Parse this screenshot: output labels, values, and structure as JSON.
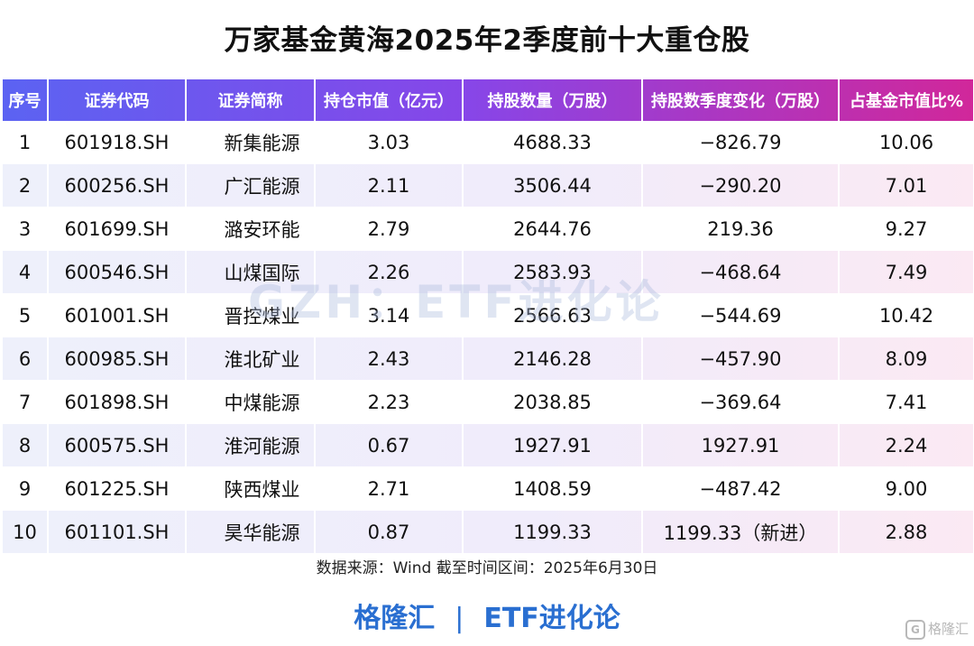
{
  "chart_data": {
    "type": "table",
    "title": "万家基金黄海2025年2季度前十大重仓股",
    "columns": [
      "序号",
      "证券代码",
      "证券简称",
      "持仓市值（亿元）",
      "持股数量（万股）",
      "持股数季度变化（万股）",
      "占基金市值比%"
    ],
    "rows": [
      {
        "rank": "1",
        "code": "601918.SH",
        "name": "新集能源",
        "value": "3.03",
        "shares": "4688.33",
        "change": "−826.79",
        "change_dir": "neg",
        "pct": "10.06"
      },
      {
        "rank": "2",
        "code": "600256.SH",
        "name": "广汇能源",
        "value": "2.11",
        "shares": "3506.44",
        "change": "−290.20",
        "change_dir": "neg",
        "pct": "7.01"
      },
      {
        "rank": "3",
        "code": "601699.SH",
        "name": "潞安环能",
        "value": "2.79",
        "shares": "2644.76",
        "change": "219.36",
        "change_dir": "pos",
        "pct": "9.27"
      },
      {
        "rank": "4",
        "code": "600546.SH",
        "name": "山煤国际",
        "value": "2.26",
        "shares": "2583.93",
        "change": "−468.64",
        "change_dir": "neg",
        "pct": "7.49"
      },
      {
        "rank": "5",
        "code": "601001.SH",
        "name": "晋控煤业",
        "value": "3.14",
        "shares": "2566.63",
        "change": "−544.69",
        "change_dir": "neg",
        "pct": "10.42"
      },
      {
        "rank": "6",
        "code": "600985.SH",
        "name": "淮北矿业",
        "value": "2.43",
        "shares": "2146.28",
        "change": "−457.90",
        "change_dir": "neg",
        "pct": "8.09"
      },
      {
        "rank": "7",
        "code": "601898.SH",
        "name": "中煤能源",
        "value": "2.23",
        "shares": "2038.85",
        "change": "−369.64",
        "change_dir": "neg",
        "pct": "7.41"
      },
      {
        "rank": "8",
        "code": "600575.SH",
        "name": "淮河能源",
        "value": "0.67",
        "shares": "1927.91",
        "change": "1927.91",
        "change_dir": "pos",
        "pct": "2.24"
      },
      {
        "rank": "9",
        "code": "601225.SH",
        "name": "陕西煤业",
        "value": "2.71",
        "shares": "1408.59",
        "change": "−487.42",
        "change_dir": "neg",
        "pct": "9.00"
      },
      {
        "rank": "10",
        "code": "601101.SH",
        "name": "昊华能源",
        "value": "0.87",
        "shares": "1199.33",
        "change": "1199.33（新进）",
        "change_dir": "pos",
        "pct": "2.88"
      }
    ]
  },
  "source": "数据来源：Wind 截至时间区间：2025年6月30日",
  "watermark": "GZH：ETF进化论",
  "footer": {
    "brand_left": "格隆汇",
    "divider": "|",
    "brand_right": "ETF进化论",
    "corner_logo_text": "格隆汇",
    "corner_logo_icon": "G"
  },
  "colors": {
    "header_gradient": [
      "#5b63f2",
      "#8746e8",
      "#d1279a"
    ],
    "negative_change": "#1fa34a",
    "positive_change": "#e8232b",
    "brand": "#2a6fd1"
  }
}
